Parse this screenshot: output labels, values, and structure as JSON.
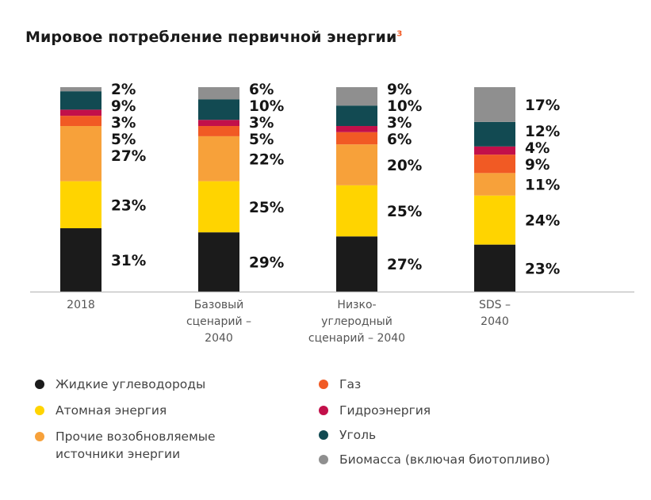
{
  "title": "Мировое потребление первичной энергии",
  "title_footnote": "3",
  "colors": {
    "liquid": "#1b1b1b",
    "nuclear": "#ffd400",
    "renew": "#f7a13a",
    "gas": "#f15a24",
    "hydro": "#c2104a",
    "coal": "#124a52",
    "biomass": "#8f8f8f"
  },
  "chart_data": {
    "type": "bar",
    "stacked": true,
    "title": "Мировое потребление первичной энергии",
    "categories": [
      "2018",
      "Базовый\nсценарий –\n2040",
      "Низко-\nуглеродный\nсценарий – 2040",
      "SDS –\n2040"
    ],
    "series": [
      {
        "name": "Жидкие углеводороды",
        "key": "liquid",
        "values": [
          31,
          29,
          27,
          23
        ]
      },
      {
        "name": "Атомная энергия",
        "key": "nuclear",
        "values": [
          23,
          25,
          25,
          24
        ]
      },
      {
        "name": "Прочие возобновляемые\nисточники энергии",
        "key": "renew",
        "values": [
          27,
          22,
          20,
          11
        ]
      },
      {
        "name": "Газ",
        "key": "gas",
        "values": [
          5,
          5,
          6,
          9
        ]
      },
      {
        "name": "Гидроэнергия",
        "key": "hydro",
        "values": [
          3,
          3,
          3,
          4
        ]
      },
      {
        "name": "Уголь",
        "key": "coal",
        "values": [
          9,
          10,
          10,
          12
        ]
      },
      {
        "name": "Биомасса (включая биотопливо)",
        "key": "biomass",
        "values": [
          2,
          6,
          9,
          17
        ]
      }
    ],
    "data_labels": [
      [
        "31%",
        "23%",
        "27%",
        "5%",
        "3%",
        "9%",
        "2%"
      ],
      [
        "29%",
        "25%",
        "22%",
        "5%",
        "3%",
        "10%",
        "6%"
      ],
      [
        "27%",
        "25%",
        "20%",
        "6%",
        "3%",
        "10%",
        "9%"
      ],
      [
        "23%",
        "24%",
        "11%",
        "9%",
        "4%",
        "12%",
        "17%"
      ]
    ],
    "ylim": [
      0,
      100
    ],
    "grid": false,
    "legend_position": "bottom"
  },
  "legend": {
    "items": [
      {
        "label": "Жидкие углеводороды",
        "key": "liquid"
      },
      {
        "label": "Атомная энергия",
        "key": "nuclear"
      },
      {
        "label": "Прочие возобновляемые\nисточники энергии",
        "key": "renew"
      },
      {
        "label": "Газ",
        "key": "gas"
      },
      {
        "label": "Гидроэнергия",
        "key": "hydro"
      },
      {
        "label": "Уголь",
        "key": "coal"
      },
      {
        "label": "Биомасса (включая биотопливо)",
        "key": "biomass"
      }
    ]
  }
}
